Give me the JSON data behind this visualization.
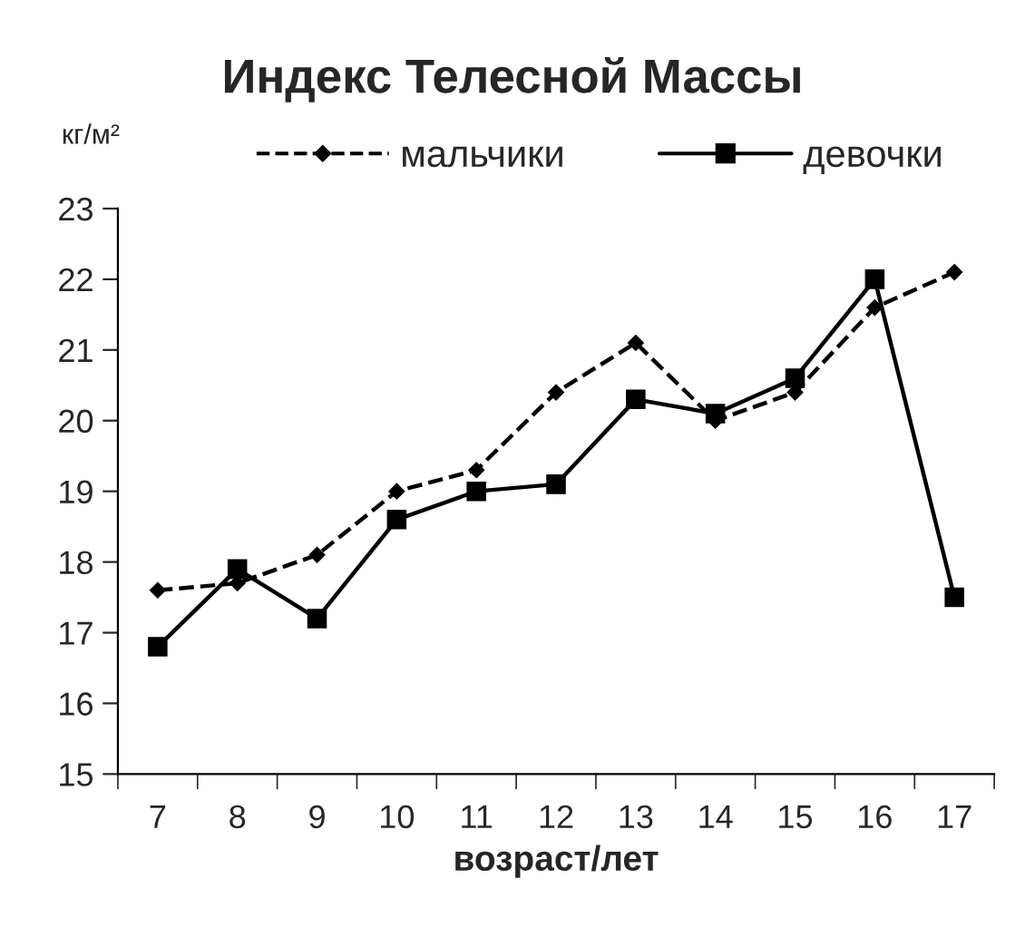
{
  "chart_data": {
    "type": "line",
    "title": "Индекс Телесной Массы",
    "ylabel": "кг/м²",
    "xlabel": "возраст/лет",
    "categories": [
      "7",
      "8",
      "9",
      "10",
      "11",
      "12",
      "13",
      "14",
      "15",
      "16",
      "17"
    ],
    "series": [
      {
        "name": "мальчики",
        "color": "#000000",
        "marker": "diamond",
        "line_style": "dashed",
        "values": [
          17.6,
          17.7,
          18.1,
          19.0,
          19.3,
          20.4,
          21.1,
          20.0,
          20.4,
          21.6,
          22.1
        ]
      },
      {
        "name": "девочки",
        "color": "#000000",
        "marker": "square",
        "line_style": "solid",
        "values": [
          16.8,
          17.9,
          17.2,
          18.6,
          19.0,
          19.1,
          20.3,
          20.1,
          20.6,
          22.0,
          17.5
        ]
      }
    ],
    "ylim": [
      15,
      23
    ],
    "yticks": [
      15,
      16,
      17,
      18,
      19,
      20,
      21,
      22,
      23
    ],
    "grid": false,
    "legend": "top"
  }
}
